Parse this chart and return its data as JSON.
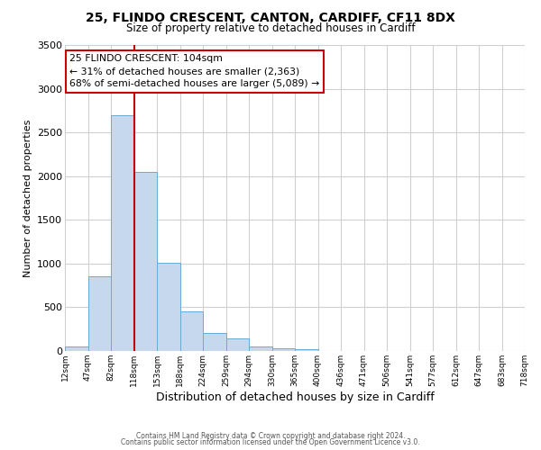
{
  "title1": "25, FLINDO CRESCENT, CANTON, CARDIFF, CF11 8DX",
  "title2": "Size of property relative to detached houses in Cardiff",
  "xlabel": "Distribution of detached houses by size in Cardiff",
  "ylabel": "Number of detached properties",
  "bar_heights": [
    50,
    850,
    2700,
    2050,
    1010,
    450,
    205,
    140,
    55,
    30,
    20,
    0,
    0,
    0,
    0,
    0,
    0,
    0,
    0,
    0
  ],
  "bin_labels": [
    "12sqm",
    "47sqm",
    "82sqm",
    "118sqm",
    "153sqm",
    "188sqm",
    "224sqm",
    "259sqm",
    "294sqm",
    "330sqm",
    "365sqm",
    "400sqm",
    "436sqm",
    "471sqm",
    "506sqm",
    "541sqm",
    "577sqm",
    "612sqm",
    "647sqm",
    "683sqm",
    "718sqm"
  ],
  "bar_color": "#c5d8ee",
  "bar_edge_color": "#6aaad4",
  "vline_color": "#cc0000",
  "annotation_title": "25 FLINDO CRESCENT: 104sqm",
  "annotation_line1": "← 31% of detached houses are smaller (2,363)",
  "annotation_line2": "68% of semi-detached houses are larger (5,089) →",
  "annotation_box_color": "#ffffff",
  "annotation_box_edgecolor": "#cc0000",
  "ylim": [
    0,
    3500
  ],
  "yticks": [
    0,
    500,
    1000,
    1500,
    2000,
    2500,
    3000,
    3500
  ],
  "footer1": "Contains HM Land Registry data © Crown copyright and database right 2024.",
  "footer2": "Contains public sector information licensed under the Open Government Licence v3.0.",
  "bg_color": "#ffffff",
  "grid_color": "#d0d0d0"
}
